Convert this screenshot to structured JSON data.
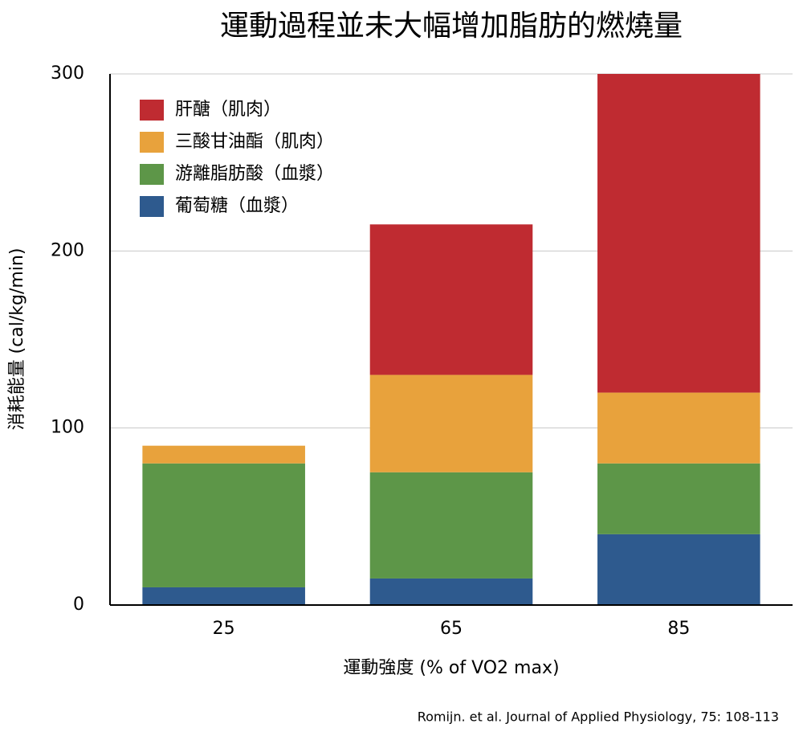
{
  "chart_data": {
    "type": "stacked_bar",
    "title": "運動過程並未大幅增加脂肪的燃燒量",
    "x_label": "運動強度 (% of VO2 max)",
    "y_label": "消耗能量 (cal/kg/min)",
    "source": "Romijn. et al. Journal of Applied Physiology, 75: 108-113",
    "categories": [
      "25",
      "65",
      "85"
    ],
    "series": [
      {
        "name": "肝醣（肌肉）",
        "color": "#bf2b31",
        "values": [
          0,
          85,
          180
        ]
      },
      {
        "name": "三酸甘油酯（肌肉）",
        "color": "#e8a23c",
        "values": [
          10,
          55,
          40
        ]
      },
      {
        "name": "游離脂肪酸（血漿）",
        "color": "#5d9648",
        "values": [
          70,
          60,
          40
        ]
      },
      {
        "name": "葡萄糖（血漿）",
        "color": "#2e5a8e",
        "values": [
          10,
          15,
          40
        ]
      }
    ],
    "ylim": [
      0,
      300
    ],
    "yticks": [
      0,
      100,
      200,
      300
    ],
    "grid": true
  }
}
